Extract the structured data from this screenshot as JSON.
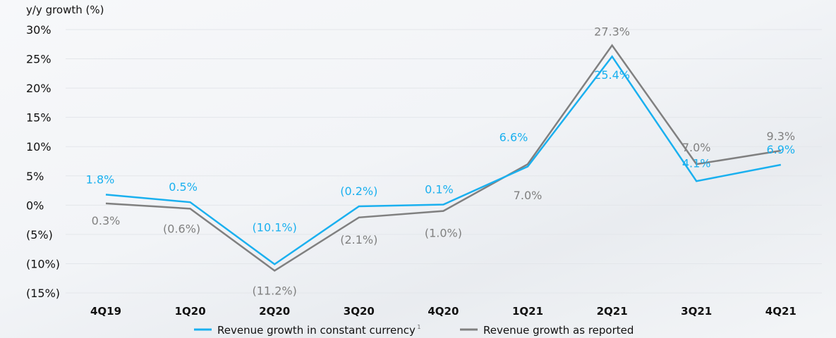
{
  "chart_data": {
    "type": "line",
    "title": "",
    "ylabel": "y/y growth (%)",
    "xlabel": "",
    "ylim": [
      -15,
      30
    ],
    "yticks": [
      30,
      25,
      20,
      15,
      10,
      5,
      0,
      -5,
      -10,
      -15
    ],
    "ytick_labels": [
      "30%",
      "25%",
      "20%",
      "15%",
      "10%",
      "5%",
      "0%",
      "(5%)",
      "(10%)",
      "(15%)"
    ],
    "categories": [
      "4Q19",
      "1Q20",
      "2Q20",
      "3Q20",
      "4Q20",
      "1Q21",
      "2Q21",
      "3Q21",
      "4Q21"
    ],
    "grid": true,
    "legend_position": "bottom",
    "series": [
      {
        "name": "Revenue growth in constant currency",
        "footnote": "1",
        "color": "#1ab0ef",
        "values": [
          1.8,
          0.5,
          -10.1,
          -0.2,
          0.1,
          6.6,
          25.4,
          4.1,
          6.9
        ],
        "labels": [
          "1.8%",
          "0.5%",
          "(10.1%)",
          "(0.2%)",
          "0.1%",
          "6.6%",
          "25.4%",
          "4.1%",
          "6.9%"
        ]
      },
      {
        "name": "Revenue growth as reported",
        "color": "#808080",
        "values": [
          0.3,
          -0.6,
          -11.2,
          -2.1,
          -1.0,
          7.0,
          27.3,
          7.0,
          9.3
        ],
        "labels": [
          "0.3%",
          "(0.6%)",
          "(11.2%)",
          "(2.1%)",
          "(1.0%)",
          "7.0%",
          "27.3%",
          "7.0%",
          "9.3%"
        ]
      }
    ]
  }
}
